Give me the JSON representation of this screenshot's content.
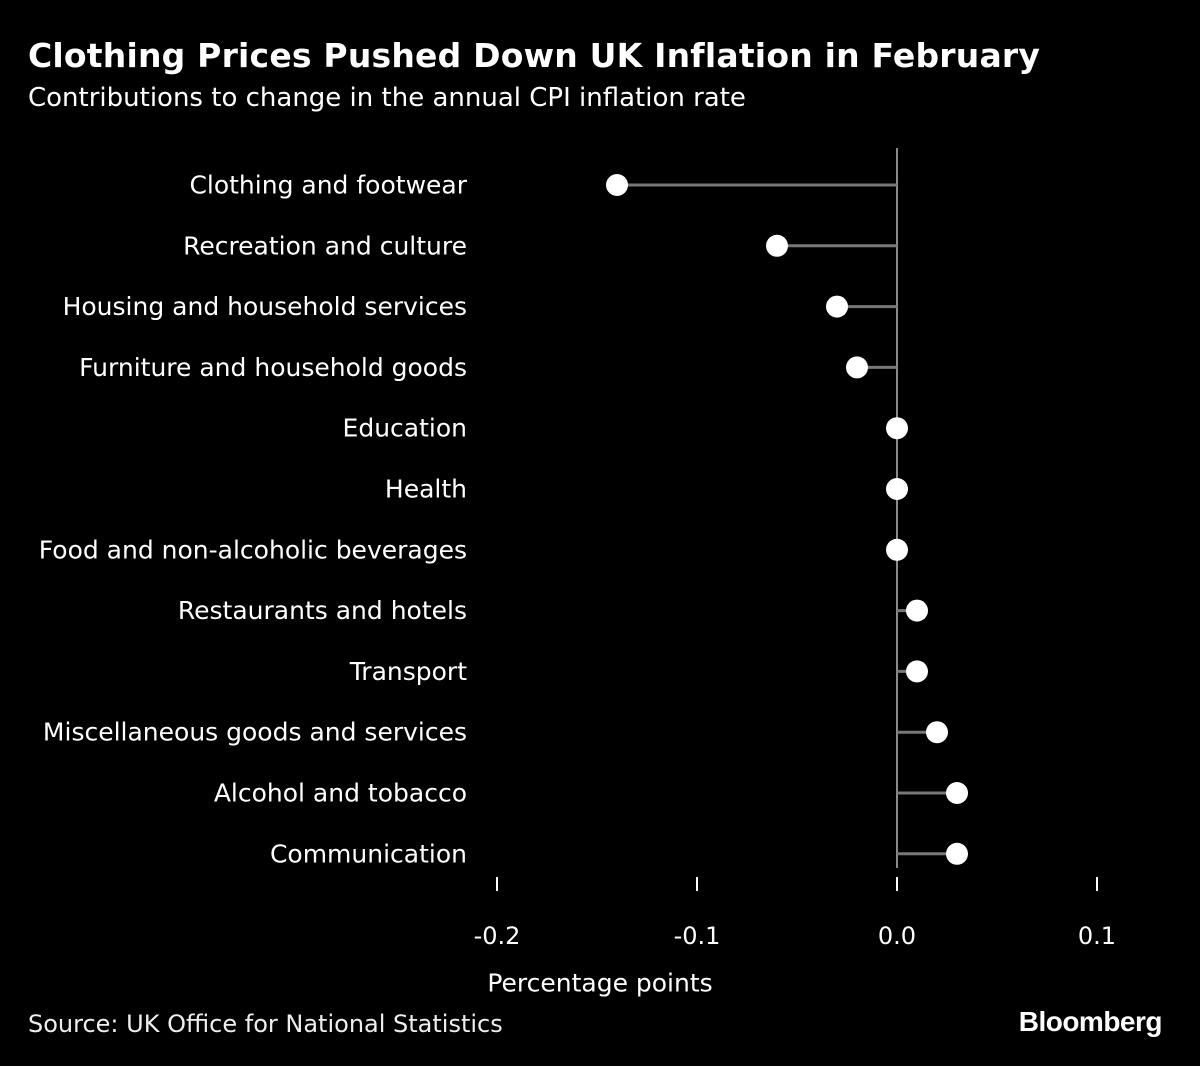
{
  "chart_data": {
    "type": "lollipop",
    "title": "Clothing Prices Pushed Down UK Inflation in February",
    "subtitle": "Contributions to change in the annual CPI inflation rate",
    "xlabel": "Percentage points",
    "ylabel": "",
    "xlim": [
      -0.2,
      0.1
    ],
    "xticks": [
      {
        "value": -0.2,
        "label": "-0.2"
      },
      {
        "value": -0.1,
        "label": "-0.1"
      },
      {
        "value": 0.0,
        "label": "0.0"
      },
      {
        "value": 0.1,
        "label": "0.1"
      }
    ],
    "categories": [
      "Clothing and footwear",
      "Recreation and culture",
      "Housing and household services",
      "Furniture and household goods",
      "Education",
      "Health",
      "Food and non-alcoholic beverages",
      "Restaurants and hotels",
      "Transport",
      "Miscellaneous goods and services",
      "Alcohol and tobacco",
      "Communication"
    ],
    "values": [
      -0.14,
      -0.06,
      -0.03,
      -0.02,
      0.0,
      0.0,
      0.0,
      0.01,
      0.01,
      0.02,
      0.03,
      0.03
    ]
  },
  "footer": {
    "source": "Source: UK Office for National Statistics",
    "brand": "Bloomberg"
  },
  "colors": {
    "background": "#000000",
    "text": "#ffffff",
    "stem": "#777777",
    "zero_line": "#8a8a8a",
    "dot": "#ffffff"
  }
}
